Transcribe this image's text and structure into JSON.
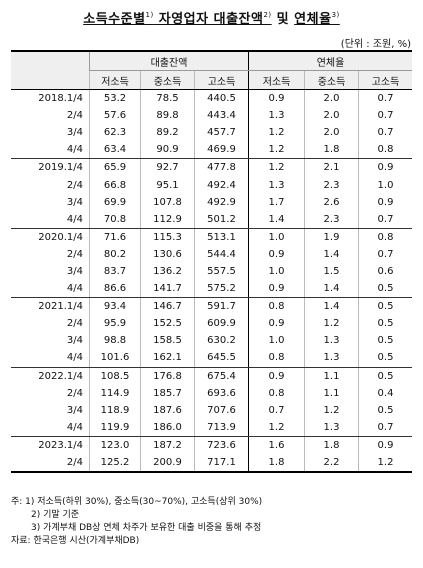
{
  "title": {
    "prefix": "소득수준별",
    "sup1": "1)",
    "middle": " 자영업자 대출잔액",
    "sup2": "2)",
    "and": " 및 ",
    "suffix": "연체율",
    "sup3": "3)"
  },
  "unit": "(단위 : 조원, %)",
  "headers": {
    "balance": "대출잔액",
    "delinquency": "연체율",
    "cols": [
      "저소득",
      "중소득",
      "고소득",
      "저소득",
      "중소득",
      "고소득"
    ]
  },
  "rows": [
    {
      "period": "2018.1/4",
      "v": [
        "53.2",
        "78.5",
        "440.5",
        "0.9",
        "2.0",
        "0.7"
      ]
    },
    {
      "period": "2/4",
      "v": [
        "57.6",
        "89.8",
        "443.4",
        "1.3",
        "2.0",
        "0.7"
      ]
    },
    {
      "period": "3/4",
      "v": [
        "62.3",
        "89.2",
        "457.7",
        "1.2",
        "2.0",
        "0.7"
      ]
    },
    {
      "period": "4/4",
      "v": [
        "63.4",
        "90.9",
        "469.9",
        "1.2",
        "1.8",
        "0.8"
      ]
    },
    {
      "period": "2019.1/4",
      "v": [
        "65.9",
        "92.7",
        "477.8",
        "1.2",
        "2.1",
        "0.9"
      ]
    },
    {
      "period": "2/4",
      "v": [
        "66.8",
        "95.1",
        "492.4",
        "1.3",
        "2.3",
        "1.0"
      ]
    },
    {
      "period": "3/4",
      "v": [
        "69.9",
        "107.8",
        "492.9",
        "1.7",
        "2.6",
        "0.9"
      ]
    },
    {
      "period": "4/4",
      "v": [
        "70.8",
        "112.9",
        "501.2",
        "1.4",
        "2.3",
        "0.7"
      ]
    },
    {
      "period": "2020.1/4",
      "v": [
        "71.6",
        "115.3",
        "513.1",
        "1.0",
        "1.9",
        "0.8"
      ]
    },
    {
      "period": "2/4",
      "v": [
        "80.2",
        "130.6",
        "544.4",
        "0.9",
        "1.4",
        "0.7"
      ]
    },
    {
      "period": "3/4",
      "v": [
        "83.7",
        "136.2",
        "557.5",
        "1.0",
        "1.5",
        "0.6"
      ]
    },
    {
      "period": "4/4",
      "v": [
        "86.6",
        "141.7",
        "575.2",
        "0.9",
        "1.4",
        "0.5"
      ]
    },
    {
      "period": "2021.1/4",
      "v": [
        "93.4",
        "146.7",
        "591.7",
        "0.8",
        "1.4",
        "0.5"
      ]
    },
    {
      "period": "2/4",
      "v": [
        "95.9",
        "152.5",
        "609.9",
        "0.9",
        "1.2",
        "0.5"
      ]
    },
    {
      "period": "3/4",
      "v": [
        "98.8",
        "158.5",
        "630.2",
        "1.0",
        "1.3",
        "0.5"
      ]
    },
    {
      "period": "4/4",
      "v": [
        "101.6",
        "162.1",
        "645.5",
        "0.8",
        "1.3",
        "0.5"
      ]
    },
    {
      "period": "2022.1/4",
      "v": [
        "108.5",
        "176.8",
        "675.4",
        "0.9",
        "1.1",
        "0.5"
      ]
    },
    {
      "period": "2/4",
      "v": [
        "114.9",
        "185.7",
        "693.6",
        "0.8",
        "1.1",
        "0.4"
      ]
    },
    {
      "period": "3/4",
      "v": [
        "118.9",
        "187.6",
        "707.6",
        "0.7",
        "1.2",
        "0.5"
      ]
    },
    {
      "period": "4/4",
      "v": [
        "119.9",
        "186.0",
        "713.9",
        "1.2",
        "1.3",
        "0.7"
      ]
    },
    {
      "period": "2023.1/4",
      "v": [
        "123.0",
        "187.2",
        "723.6",
        "1.6",
        "1.8",
        "0.9"
      ]
    },
    {
      "period": "2/4",
      "v": [
        "125.2",
        "200.9",
        "717.1",
        "1.8",
        "2.2",
        "1.2"
      ]
    }
  ],
  "notes": {
    "n1": "주: 1) 저소득(하위 30%), 중소득(30~70%), 고소득(상위 30%)",
    "n2": "2) 기말 기준",
    "n3": "3) 가계부채 DB상 연체 차주가 보유한 대출 비중을 통해 추정",
    "source": "자료: 한국은행 시산(가계부채DB)"
  }
}
